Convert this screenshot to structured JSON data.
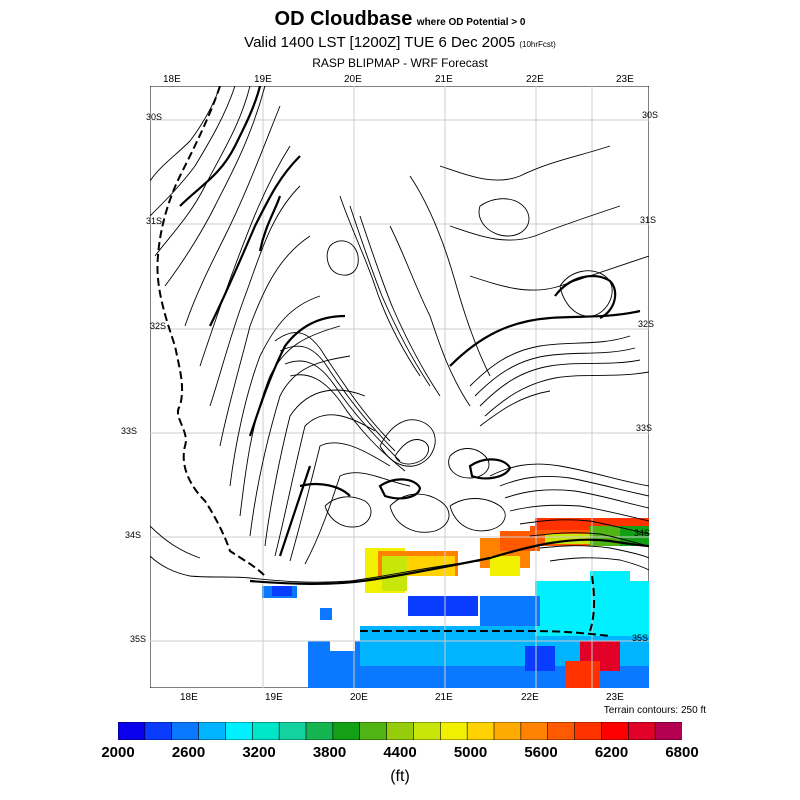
{
  "title": {
    "main": "OD Cloudbase",
    "qualifier": "where OD Potential > 0",
    "valid_prefix": "Valid 1400 LST [1200Z] TUE 6 Dec 2005",
    "forecast_hours": "(10hrFcst)",
    "subtitle": "RASP BLIPMAP - WRF Forecast"
  },
  "map": {
    "top_lon_labels": [
      "18E",
      "19E",
      "20E",
      "21E",
      "22E",
      "23E"
    ],
    "bottom_lon_labels": [
      "18E",
      "19E",
      "20E",
      "21E",
      "22E",
      "23E"
    ],
    "lat_labels": [
      "30S",
      "31S",
      "32S",
      "33S",
      "34S",
      "35S"
    ],
    "terrain_note": "Terrain contours: 250 ft"
  },
  "colorbar": {
    "unit": "(ft)",
    "labels": [
      "2000",
      "2600",
      "3200",
      "3800",
      "4400",
      "5000",
      "5600",
      "6200",
      "6800"
    ],
    "colors": [
      "#0a00ee",
      "#0a3cff",
      "#0a78ff",
      "#00b4ff",
      "#00f0ff",
      "#00e6c8",
      "#14d2a0",
      "#14b450",
      "#14a014",
      "#50b414",
      "#96cd0a",
      "#c8e60a",
      "#f0f000",
      "#ffd200",
      "#ffaa00",
      "#ff8200",
      "#ff5a00",
      "#ff3200",
      "#ff0000",
      "#e10028",
      "#b40050"
    ]
  },
  "legend_colors": {
    "very_low": "#0a00ee",
    "low": "#0a78ff",
    "mid_low": "#00e6c8",
    "mid": "#50b414",
    "mid_high": "#f0f000",
    "high": "#ff8200",
    "very_high": "#ff3200"
  }
}
